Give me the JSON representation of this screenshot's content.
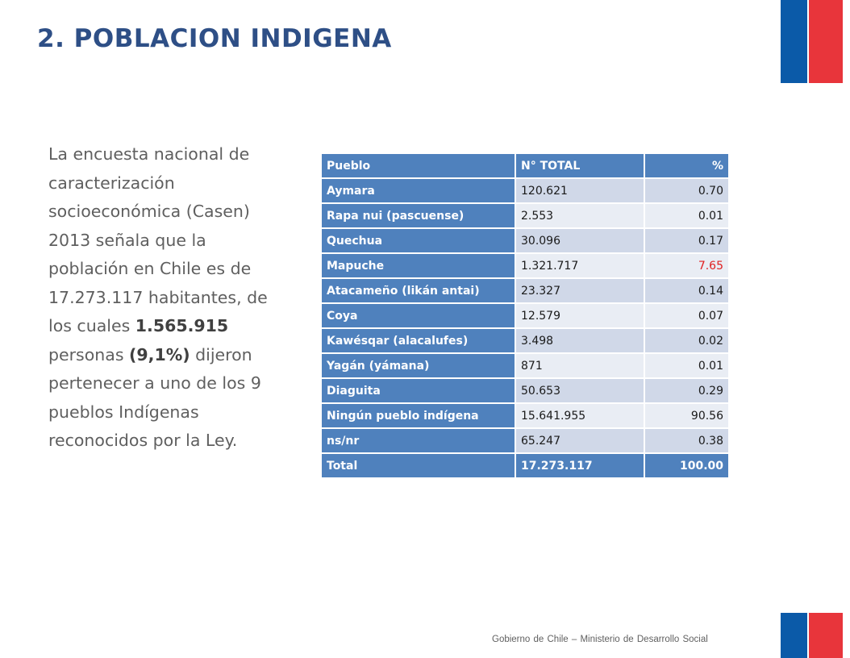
{
  "title": "2. POBLACION INDIGENA",
  "paragraph": {
    "part1": "La encuesta nacional de caracterización socioeconómica (Casen) 2013 señala que la población en Chile es de 17.273.117 habitantes, de los cuales ",
    "bold1": "1.565.915",
    "part2": " personas ",
    "bold2": "(9,1%)",
    "part3": " dijeron pertenecer a uno de los 9 pueblos Indígenas reconocidos por la Ley."
  },
  "table": {
    "headers": [
      "Pueblo",
      "N° TOTAL",
      "%"
    ],
    "rows": [
      {
        "pueblo": "Aymara",
        "total": "120.621",
        "pct": "0.70"
      },
      {
        "pueblo": "Rapa nui (pascuense)",
        "total": "2.553",
        "pct": "0.01"
      },
      {
        "pueblo": "Quechua",
        "total": "30.096",
        "pct": "0.17"
      },
      {
        "pueblo": "Mapuche",
        "total": "1.321.717",
        "pct": "7.65"
      },
      {
        "pueblo": "Atacameño (likán antai)",
        "total": "23.327",
        "pct": "0.14"
      },
      {
        "pueblo": "Coya",
        "total": "12.579",
        "pct": "0.07"
      },
      {
        "pueblo": "Kawésqar (alacalufes)",
        "total": "3.498",
        "pct": "0.02"
      },
      {
        "pueblo": "Yagán (yámana)",
        "total": "871",
        "pct": "0.01"
      },
      {
        "pueblo": "Diaguita",
        "total": "50.653",
        "pct": "0.29"
      },
      {
        "pueblo": "Ningún pueblo indígena",
        "total": "15.641.955",
        "pct": "90.56"
      },
      {
        "pueblo": "ns/nr",
        "total": "65.247",
        "pct": "0.38"
      }
    ],
    "total": {
      "pueblo": "Total",
      "total": "17.273.117",
      "pct": "100.00"
    },
    "highlight_color": "#e02020",
    "header_color": "#4f81bd"
  },
  "footer": "Gobierno de Chile – Ministerio de Desarrollo Social",
  "colors": {
    "title": "#2e4f86",
    "flag_blue": "#0b5aa8",
    "flag_red": "#e8353b"
  }
}
